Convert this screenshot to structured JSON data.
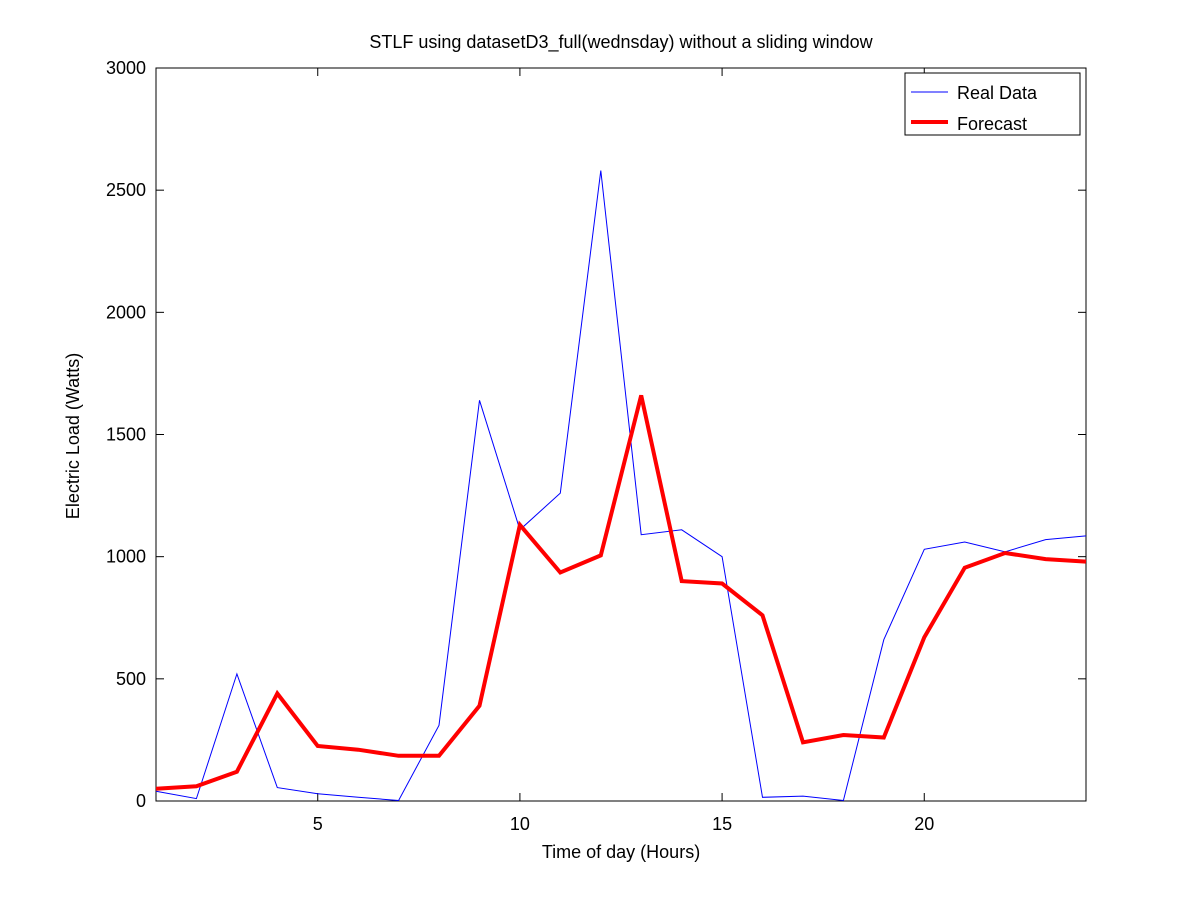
{
  "chart_data": {
    "type": "line",
    "title": "STLF using datasetD3_full(wednsday) without a sliding window",
    "xlabel": "Time of day (Hours)",
    "ylabel": "Electric Load (Watts)",
    "xlim": [
      1,
      24
    ],
    "ylim": [
      0,
      3000
    ],
    "x_ticks": [
      5,
      10,
      15,
      20
    ],
    "y_ticks": [
      0,
      500,
      1000,
      1500,
      2000,
      2500,
      3000
    ],
    "x_tick_labels": [
      "5",
      "10",
      "15",
      "20"
    ],
    "y_tick_labels": [
      "0",
      "500",
      "1000",
      "1500",
      "2000",
      "2500",
      "3000"
    ],
    "grid": false,
    "legend_position": "top-right",
    "x": [
      1,
      2,
      3,
      4,
      5,
      6,
      7,
      8,
      9,
      10,
      11,
      12,
      13,
      14,
      15,
      16,
      17,
      18,
      19,
      20,
      21,
      22,
      23,
      24
    ],
    "series": [
      {
        "name": "Real Data",
        "color": "#0000ff",
        "values": [
          40,
          10,
          520,
          55,
          30,
          15,
          2,
          310,
          1640,
          1110,
          1260,
          2580,
          1090,
          1110,
          1000,
          15,
          20,
          2,
          660,
          1030,
          1060,
          1020,
          1070,
          1085
        ]
      },
      {
        "name": "Forecast",
        "color": "#ff0000",
        "values": [
          50,
          60,
          120,
          440,
          225,
          210,
          185,
          185,
          390,
          1130,
          935,
          1005,
          1660,
          900,
          890,
          760,
          240,
          270,
          260,
          670,
          955,
          1015,
          990,
          980
        ]
      }
    ]
  }
}
